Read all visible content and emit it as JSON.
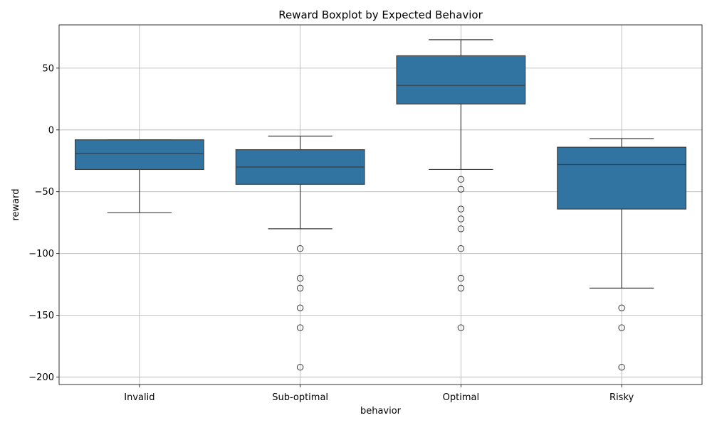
{
  "chart_data": {
    "type": "boxplot",
    "title": "Reward Boxplot by Expected Behavior",
    "xlabel": "behavior",
    "ylabel": "reward",
    "ylim": [
      -206,
      85
    ],
    "yticks": [
      50,
      0,
      -50,
      -100,
      -150,
      -200
    ],
    "ytick_labels": [
      "50",
      "0",
      "−50",
      "−100",
      "−150",
      "−200"
    ],
    "grid": true,
    "box_color": "#3274a1",
    "line_color": "#3d3d3d",
    "grid_color": "#b0b0b0",
    "categories": [
      "Invalid",
      "Sub-optimal",
      "Optimal",
      "Risky"
    ],
    "boxes": [
      {
        "category": "Invalid",
        "whisker_low": -67,
        "q1": -32,
        "median": -19,
        "q3": -8,
        "whisker_high": -8,
        "outliers": []
      },
      {
        "category": "Sub-optimal",
        "whisker_low": -80,
        "q1": -44,
        "median": -30,
        "q3": -16,
        "whisker_high": -5,
        "outliers": [
          -96,
          -120,
          -128,
          -144,
          -160,
          -192
        ]
      },
      {
        "category": "Optimal",
        "whisker_low": -32,
        "q1": 21,
        "median": 36,
        "q3": 60,
        "whisker_high": 73,
        "outliers": [
          -40,
          -48,
          -64,
          -72,
          -80,
          -96,
          -120,
          -128,
          -160
        ]
      },
      {
        "category": "Risky",
        "whisker_low": -128,
        "q1": -64,
        "median": -28,
        "q3": -14,
        "whisker_high": -7,
        "outliers": [
          -144,
          -160,
          -192
        ]
      }
    ]
  }
}
